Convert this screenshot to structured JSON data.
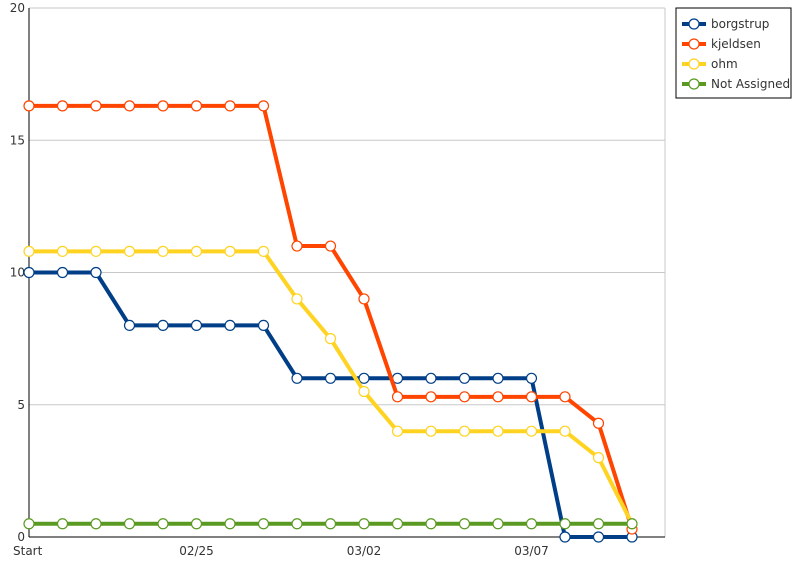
{
  "chart_data": {
    "type": "line",
    "title": "",
    "xlabel": "",
    "ylabel": "",
    "ylim": [
      0,
      20
    ],
    "yticks": [
      "0",
      "5",
      "10",
      "15",
      "20"
    ],
    "xticks": [
      {
        "index": 0,
        "label": "Start"
      },
      {
        "index": 5,
        "label": "02/25"
      },
      {
        "index": 10,
        "label": "03/02"
      },
      {
        "index": 15,
        "label": "03/07"
      }
    ],
    "x": [
      0,
      1,
      2,
      3,
      4,
      5,
      6,
      7,
      8,
      9,
      10,
      11,
      12,
      13,
      14,
      15,
      16,
      17,
      18
    ],
    "grid": true,
    "legend_position": "top-right",
    "series": [
      {
        "name": "borgstrup",
        "color": "#003f87",
        "values": [
          10,
          10,
          10,
          8,
          8,
          8,
          8,
          8,
          6,
          6,
          6,
          6,
          6,
          6,
          6,
          6,
          0,
          0,
          0
        ]
      },
      {
        "name": "kjeldsen",
        "color": "#ff4500",
        "values": [
          16.3,
          16.3,
          16.3,
          16.3,
          16.3,
          16.3,
          16.3,
          16.3,
          11,
          11,
          9,
          5.3,
          5.3,
          5.3,
          5.3,
          5.3,
          5.3,
          4.3,
          0.3
        ]
      },
      {
        "name": "ohm",
        "color": "#ffd322",
        "values": [
          10.8,
          10.8,
          10.8,
          10.8,
          10.8,
          10.8,
          10.8,
          10.8,
          9,
          7.5,
          5.5,
          4,
          4,
          4,
          4,
          4,
          4,
          3,
          0.5
        ]
      },
      {
        "name": "Not Assigned",
        "color": "#5a9a22",
        "values": [
          0.5,
          0.5,
          0.5,
          0.5,
          0.5,
          0.5,
          0.5,
          0.5,
          0.5,
          0.5,
          0.5,
          0.5,
          0.5,
          0.5,
          0.5,
          0.5,
          0.5,
          0.5,
          0.5
        ]
      }
    ]
  }
}
